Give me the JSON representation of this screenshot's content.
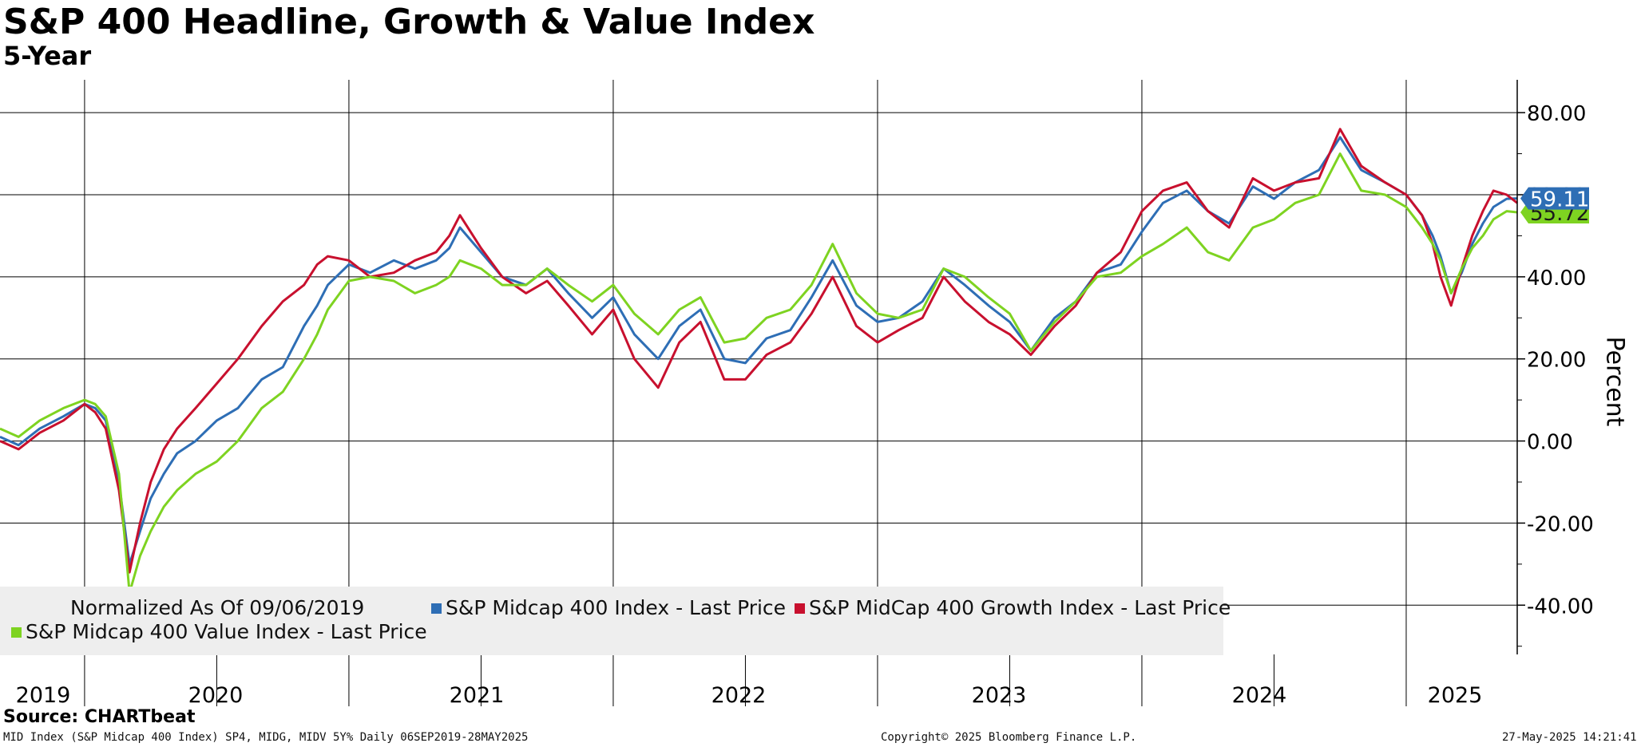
{
  "title": "S&P 400 Headline, Growth & Value Index",
  "subtitle": "5-Year",
  "legend": {
    "normalized": "Normalized As Of 09/06/2019",
    "items": [
      {
        "label": "S&P Midcap 400 Index - Last Price",
        "color": "#2e6eb5"
      },
      {
        "label": "S&P MidCap 400 Growth Index - Last Price",
        "color": "#c8102e"
      },
      {
        "label": "S&P Midcap 400 Value Index - Last Price",
        "color": "#7ed321"
      }
    ]
  },
  "source": "Source: CHARTbeat",
  "footer": {
    "left": "MID Index (S&P Midcap 400 Index) SP4, MIDG, MIDV 5Y%  Daily 06SEP2019-28MAY2025",
    "center": "Copyright© 2025 Bloomberg Finance L.P.",
    "right": "27-May-2025 14:21:41"
  },
  "chart_data": {
    "type": "line",
    "title": "S&P 400 Headline, Growth & Value Index",
    "subtitle": "5-Year",
    "ylabel": "Percent",
    "ylim": [
      -52,
      88
    ],
    "y_ticks": [
      80,
      60,
      40,
      20,
      0,
      -20,
      -40
    ],
    "y_tick_labels": [
      "80.00",
      "60.00",
      "40.00",
      "20.00",
      "0.00",
      "-20.00",
      "-40.00"
    ],
    "x_range_years": [
      2019.68,
      2025.42
    ],
    "x_year_labels": [
      {
        "label": "2019",
        "center": 2019.84
      },
      {
        "label": "2020",
        "center": 2020.5
      },
      {
        "label": "2021",
        "center": 2021.5
      },
      {
        "label": "2022",
        "center": 2022.5
      },
      {
        "label": "2023",
        "center": 2023.5
      },
      {
        "label": "2024",
        "center": 2024.5
      },
      {
        "label": "2025",
        "center": 2025.21
      }
    ],
    "x_gridlines": [
      2020.0,
      2021.0,
      2022.0,
      2023.0,
      2024.0,
      2025.0
    ],
    "x_minor_gridlines": [
      2021.0,
      2022.0,
      2023.0,
      2024.5
    ],
    "last_value_labels": [
      {
        "label": "59.11",
        "value": 59.11,
        "series": "S&P Midcap 400 Index - Last Price"
      },
      {
        "label": "55.72",
        "value": 55.72,
        "series": "S&P Midcap 400 Value Index - Last Price"
      }
    ],
    "x": [
      2019.68,
      2019.75,
      2019.83,
      2019.92,
      2020.0,
      2020.04,
      2020.08,
      2020.13,
      2020.17,
      2020.21,
      2020.25,
      2020.3,
      2020.35,
      2020.42,
      2020.5,
      2020.58,
      2020.67,
      2020.75,
      2020.83,
      2020.88,
      2020.92,
      2021.0,
      2021.08,
      2021.17,
      2021.25,
      2021.33,
      2021.38,
      2021.42,
      2021.5,
      2021.58,
      2021.67,
      2021.75,
      2021.83,
      2021.92,
      2022.0,
      2022.08,
      2022.17,
      2022.25,
      2022.33,
      2022.42,
      2022.5,
      2022.58,
      2022.67,
      2022.75,
      2022.83,
      2022.92,
      2023.0,
      2023.08,
      2023.17,
      2023.25,
      2023.33,
      2023.42,
      2023.5,
      2023.58,
      2023.67,
      2023.75,
      2023.83,
      2023.92,
      2024.0,
      2024.08,
      2024.17,
      2024.25,
      2024.33,
      2024.42,
      2024.5,
      2024.58,
      2024.67,
      2024.75,
      2024.83,
      2024.92,
      2025.0,
      2025.06,
      2025.1,
      2025.13,
      2025.17,
      2025.21,
      2025.25,
      2025.29,
      2025.33,
      2025.38,
      2025.42
    ],
    "series": [
      {
        "name": "S&P Midcap 400 Index - Last Price",
        "color": "#2e6eb5",
        "values": [
          1,
          -1,
          3,
          6,
          9,
          8,
          5,
          -10,
          -30,
          -22,
          -14,
          -8,
          -3,
          0,
          5,
          8,
          15,
          18,
          28,
          33,
          38,
          43,
          41,
          44,
          42,
          44,
          47,
          52,
          46,
          40,
          38,
          42,
          36,
          30,
          35,
          26,
          20,
          28,
          32,
          20,
          19,
          25,
          27,
          35,
          44,
          33,
          29,
          30,
          34,
          42,
          38,
          33,
          29,
          22,
          30,
          34,
          41,
          43,
          51,
          58,
          61,
          56,
          53,
          62,
          59,
          63,
          66,
          74,
          66,
          63,
          60,
          55,
          50,
          45,
          36,
          41,
          48,
          53,
          57,
          59,
          59.11
        ]
      },
      {
        "name": "S&P MidCap 400 Growth Index - Last Price",
        "color": "#c8102e",
        "values": [
          0,
          -2,
          2,
          5,
          9,
          7,
          3,
          -12,
          -32,
          -20,
          -10,
          -2,
          3,
          8,
          14,
          20,
          28,
          34,
          38,
          43,
          45,
          44,
          40,
          41,
          44,
          46,
          50,
          55,
          47,
          40,
          36,
          39,
          33,
          26,
          32,
          20,
          13,
          24,
          29,
          15,
          15,
          21,
          24,
          31,
          40,
          28,
          24,
          27,
          30,
          40,
          34,
          29,
          26,
          21,
          28,
          33,
          41,
          46,
          56,
          61,
          63,
          56,
          52,
          64,
          61,
          63,
          64,
          76,
          67,
          63,
          60,
          55,
          48,
          40,
          33,
          42,
          50,
          56,
          61,
          60,
          58
        ]
      },
      {
        "name": "S&P Midcap 400 Value Index - Last Price",
        "color": "#7ed321",
        "values": [
          3,
          1,
          5,
          8,
          10,
          9,
          6,
          -8,
          -37,
          -28,
          -22,
          -16,
          -12,
          -8,
          -5,
          0,
          8,
          12,
          20,
          26,
          32,
          39,
          40,
          39,
          36,
          38,
          40,
          44,
          42,
          38,
          38,
          42,
          38,
          34,
          38,
          31,
          26,
          32,
          35,
          24,
          25,
          30,
          32,
          38,
          48,
          36,
          31,
          30,
          32,
          42,
          40,
          35,
          31,
          22,
          29,
          34,
          40,
          41,
          45,
          48,
          52,
          46,
          44,
          52,
          54,
          58,
          60,
          70,
          61,
          60,
          57,
          52,
          48,
          44,
          36,
          42,
          47,
          50,
          54,
          56,
          55.72
        ]
      }
    ]
  }
}
